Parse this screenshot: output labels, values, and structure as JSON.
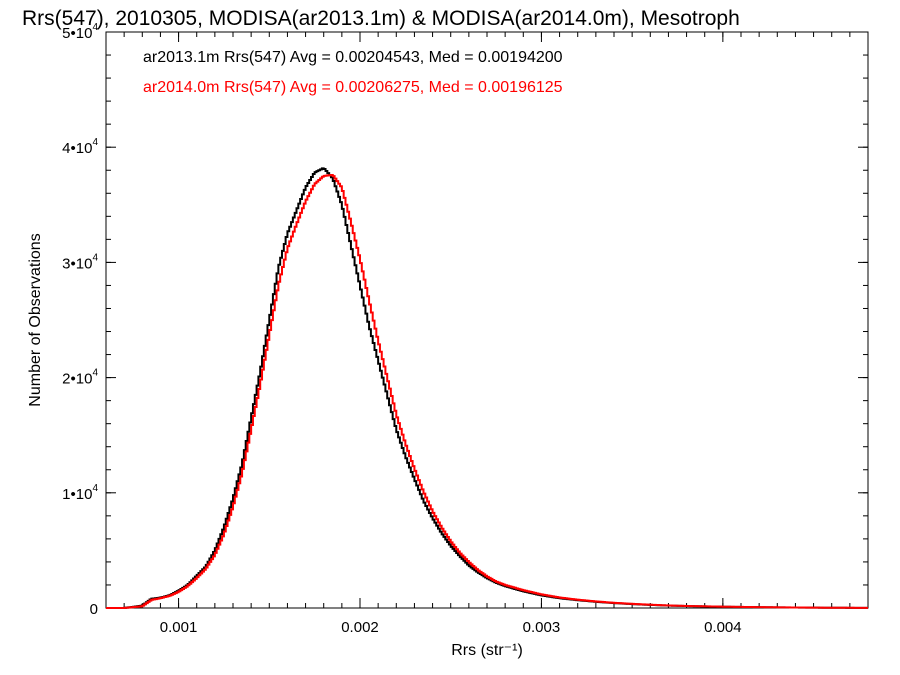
{
  "chart_data": {
    "type": "line",
    "title": "Rrs(547), 2010305, MODISA(ar2013.1m) & MODISA(ar2014.0m), Mesotroph",
    "xlabel": "Rrs (str⁻¹)",
    "ylabel": "Number of Observations",
    "xlim": [
      0.0006,
      0.0048
    ],
    "ylim": [
      0,
      50000
    ],
    "x_ticks": [
      {
        "value": 0.001,
        "label": "0.001"
      },
      {
        "value": 0.002,
        "label": "0.002"
      },
      {
        "value": 0.003,
        "label": "0.003"
      },
      {
        "value": 0.004,
        "label": "0.004"
      }
    ],
    "y_ticks": [
      {
        "value": 0,
        "label": "0"
      },
      {
        "value": 10000,
        "label": "1•10",
        "exp": "4"
      },
      {
        "value": 20000,
        "label": "2•10",
        "exp": "4"
      },
      {
        "value": 30000,
        "label": "3•10",
        "exp": "4"
      },
      {
        "value": 40000,
        "label": "4•10",
        "exp": "4"
      },
      {
        "value": 50000,
        "label": "5•10",
        "exp": "4"
      }
    ],
    "legend_placement": "top-left",
    "grid": false,
    "series": [
      {
        "name": "ar2013.1m Rrs(547) Avg = 0.00204543, Med = 0.00194200",
        "color": "#000000",
        "x": [
          0.0006,
          0.0007,
          0.0008,
          0.00085,
          0.0009,
          0.00095,
          0.001,
          0.00105,
          0.0011,
          0.00115,
          0.0012,
          0.00125,
          0.0013,
          0.00135,
          0.0014,
          0.00145,
          0.0015,
          0.00155,
          0.0016,
          0.00165,
          0.0017,
          0.00175,
          0.0018,
          0.00185,
          0.0019,
          0.00195,
          0.002,
          0.00205,
          0.0021,
          0.00215,
          0.0022,
          0.00225,
          0.0023,
          0.00235,
          0.0024,
          0.00245,
          0.0025,
          0.00255,
          0.0026,
          0.00265,
          0.0027,
          0.00275,
          0.0028,
          0.0029,
          0.003,
          0.0031,
          0.0032,
          0.0033,
          0.0034,
          0.0035,
          0.0036,
          0.0037,
          0.0038,
          0.0039,
          0.004,
          0.0042,
          0.0044,
          0.0046,
          0.0048
        ],
        "y": [
          0,
          0,
          200,
          800,
          900,
          1100,
          1500,
          2000,
          2800,
          3600,
          5000,
          7000,
          9500,
          12500,
          16500,
          20500,
          25000,
          29500,
          32500,
          34500,
          36500,
          37800,
          38200,
          37300,
          35000,
          31500,
          28000,
          24500,
          21500,
          18500,
          15500,
          13200,
          11200,
          9300,
          7800,
          6500,
          5400,
          4500,
          3700,
          3100,
          2600,
          2200,
          1900,
          1450,
          1100,
          850,
          680,
          540,
          430,
          340,
          270,
          210,
          170,
          140,
          110,
          70,
          40,
          20,
          10
        ]
      },
      {
        "name": "ar2014.0m Rrs(547) Avg = 0.00206275, Med = 0.00196125",
        "color": "#ff0000",
        "x": [
          0.0006,
          0.0007,
          0.0008,
          0.00085,
          0.0009,
          0.00095,
          0.001,
          0.00105,
          0.0011,
          0.00115,
          0.0012,
          0.00125,
          0.0013,
          0.00135,
          0.0014,
          0.00145,
          0.0015,
          0.00155,
          0.0016,
          0.00165,
          0.0017,
          0.00175,
          0.0018,
          0.00185,
          0.0019,
          0.00195,
          0.002,
          0.00205,
          0.0021,
          0.00215,
          0.0022,
          0.00225,
          0.0023,
          0.00235,
          0.0024,
          0.00245,
          0.0025,
          0.00255,
          0.0026,
          0.00265,
          0.0027,
          0.00275,
          0.0028,
          0.0029,
          0.003,
          0.0031,
          0.0032,
          0.0033,
          0.0034,
          0.0035,
          0.0036,
          0.0037,
          0.0038,
          0.0039,
          0.004,
          0.0042,
          0.0044,
          0.0046,
          0.0048
        ],
        "y": [
          0,
          0,
          150,
          700,
          850,
          1050,
          1400,
          1900,
          2600,
          3400,
          4600,
          6400,
          8800,
          11700,
          15500,
          19400,
          23700,
          28000,
          31200,
          33300,
          35300,
          36800,
          37500,
          37600,
          36500,
          33500,
          30300,
          26700,
          23200,
          20000,
          16800,
          14300,
          12100,
          10100,
          8400,
          7000,
          5800,
          4800,
          4000,
          3300,
          2750,
          2300,
          2000,
          1550,
          1180,
          910,
          720,
          570,
          450,
          360,
          285,
          220,
          175,
          145,
          115,
          75,
          45,
          22,
          12
        ]
      }
    ]
  }
}
